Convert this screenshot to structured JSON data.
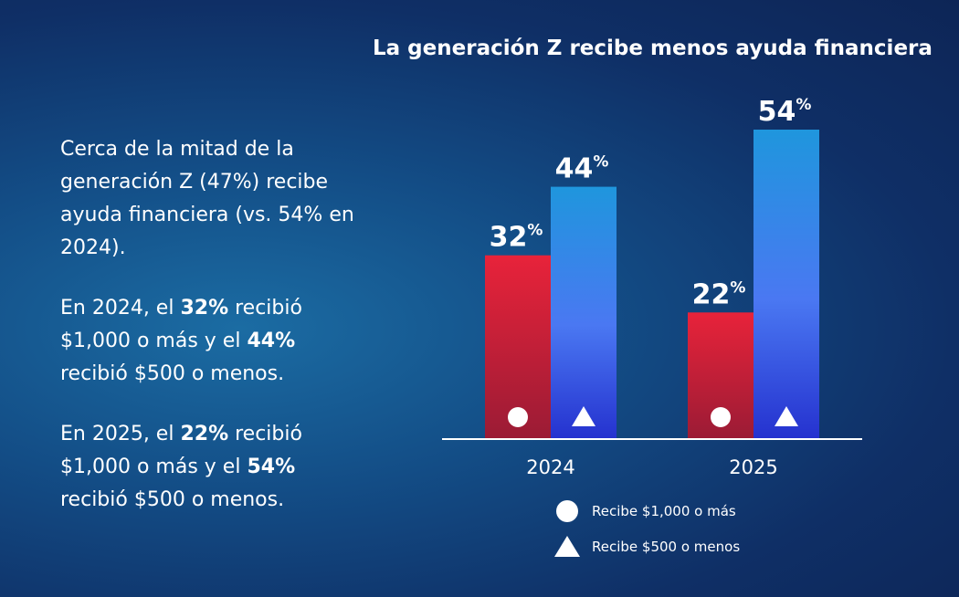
{
  "text": {
    "p1": "Cerca de la mitad de la generación Z (47%) recibe ayuda financiera (vs. 54% en 2024).",
    "p2": [
      {
        "t": "En 2024, el "
      },
      {
        "t": "32%",
        "b": true
      },
      {
        "t": " recibió $1,000 o más y el "
      },
      {
        "t": "44%",
        "b": true
      },
      {
        "t": " recibió $500 o menos."
      }
    ],
    "p3": [
      {
        "t": "En 2025, el "
      },
      {
        "t": "22%",
        "b": true
      },
      {
        "t": " recibió $1,000 o más y el "
      },
      {
        "t": "54%",
        "b": true
      },
      {
        "t": " recibió $500 o menos."
      }
    ]
  },
  "colors": {
    "red_top": "#e8233a",
    "red_bottom": "#9b1b35",
    "blue_top": "#1f96dd",
    "blue_mid": "#4a78f2",
    "blue_bottom": "#2532cf",
    "axis": "#ffffff"
  },
  "chart_data": {
    "type": "bar",
    "title": "La generación Z recibe menos ayuda financiera",
    "categories": [
      "2024",
      "2025"
    ],
    "series": [
      {
        "name": "Recibe $1,000 o más",
        "marker": "circle",
        "values": [
          32,
          22
        ]
      },
      {
        "name": "Recibe $500 o menos",
        "marker": "triangle",
        "values": [
          44,
          54
        ]
      }
    ],
    "unit": "%",
    "ylim": [
      0,
      54
    ],
    "grid": false,
    "legend_position": "bottom"
  }
}
